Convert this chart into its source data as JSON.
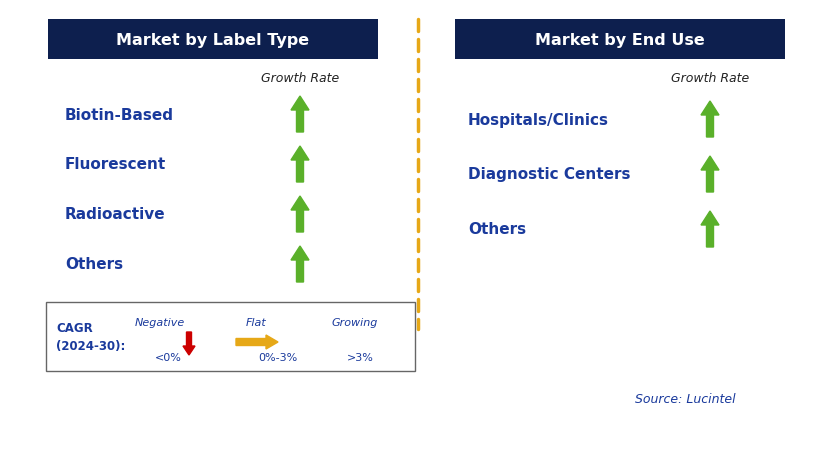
{
  "title_left": "Market by Label Type",
  "title_right": "Market by End Use",
  "title_bg_color": "#0d1f4e",
  "title_text_color": "#ffffff",
  "label_type_items": [
    "Biotin-Based",
    "Fluorescent",
    "Radioactive",
    "Others"
  ],
  "end_use_items": [
    "Hospitals/Clinics",
    "Diagnostic Centers",
    "Others"
  ],
  "item_text_color": "#1a3a9c",
  "growth_rate_label": "Growth Rate",
  "growth_rate_text_color": "#222222",
  "arrow_up_color": "#5ab02a",
  "arrow_down_color": "#cc0000",
  "arrow_flat_color": "#e6a817",
  "dashed_line_color": "#e6a817",
  "legend_cagr": "CAGR\n(2024-30):",
  "legend_negative_label": "Negative",
  "legend_negative_sub": "<0%",
  "legend_flat_label": "Flat",
  "legend_flat_sub": "0%-3%",
  "legend_growing_label": "Growing",
  "legend_growing_sub": ">3%",
  "source_text": "Source: Lucintel",
  "bg_color": "#ffffff",
  "fig_width": 8.29,
  "fig_height": 4.6,
  "dpi": 100
}
